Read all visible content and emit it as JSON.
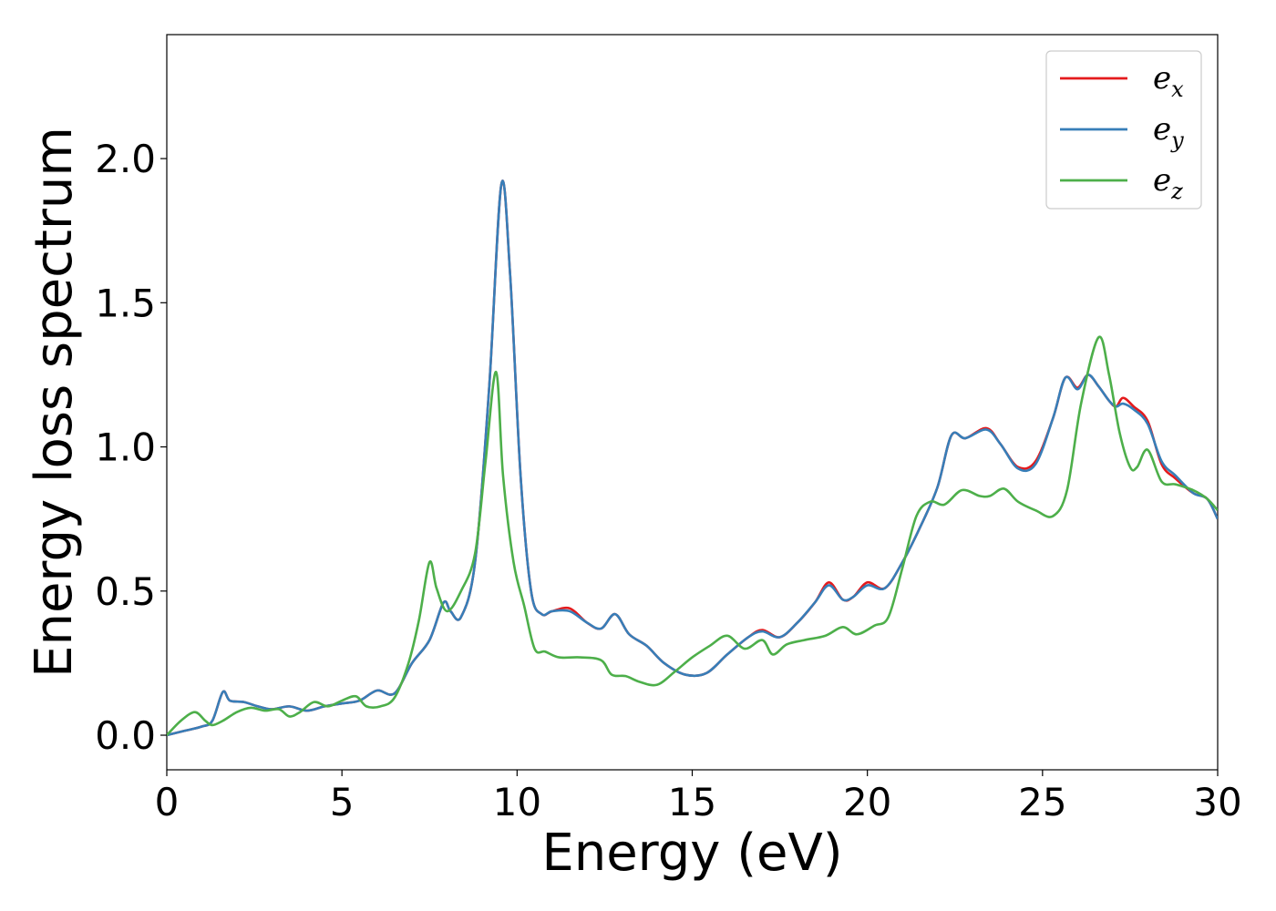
{
  "chart_data": {
    "type": "line",
    "xlabel": "Energy (eV)",
    "ylabel": "Energy loss spectrum",
    "xlim": [
      0,
      30
    ],
    "ylim": [
      -0.12,
      2.43
    ],
    "xticks": [
      0,
      5,
      10,
      15,
      20,
      25,
      30
    ],
    "xtick_labels": [
      "0",
      "5",
      "10",
      "15",
      "20",
      "25",
      "30"
    ],
    "yticks": [
      0.0,
      0.5,
      1.0,
      1.5,
      2.0
    ],
    "ytick_labels": [
      "0.0",
      "0.5",
      "1.0",
      "1.5",
      "2.0"
    ],
    "grid": false,
    "legend_position": "top-right",
    "series": [
      {
        "name": "e_x",
        "label_main": "e",
        "label_sub": "x",
        "color": "#e41a1c",
        "points": [
          [
            0,
            0
          ],
          [
            0.5,
            0.015
          ],
          [
            1.0,
            0.03
          ],
          [
            1.3,
            0.05
          ],
          [
            1.6,
            0.15
          ],
          [
            1.8,
            0.12
          ],
          [
            2.2,
            0.115
          ],
          [
            2.6,
            0.1
          ],
          [
            3.0,
            0.09
          ],
          [
            3.5,
            0.1
          ],
          [
            4.0,
            0.085
          ],
          [
            4.5,
            0.1
          ],
          [
            5.0,
            0.11
          ],
          [
            5.5,
            0.12
          ],
          [
            6.0,
            0.155
          ],
          [
            6.5,
            0.145
          ],
          [
            7.0,
            0.25
          ],
          [
            7.5,
            0.33
          ],
          [
            7.9,
            0.46
          ],
          [
            8.1,
            0.43
          ],
          [
            8.4,
            0.41
          ],
          [
            8.8,
            0.6
          ],
          [
            9.2,
            1.2
          ],
          [
            9.55,
            1.91
          ],
          [
            9.8,
            1.6
          ],
          [
            10.1,
            0.9
          ],
          [
            10.4,
            0.5
          ],
          [
            10.7,
            0.42
          ],
          [
            11.0,
            0.43
          ],
          [
            11.5,
            0.44
          ],
          [
            12.0,
            0.39
          ],
          [
            12.4,
            0.37
          ],
          [
            12.8,
            0.42
          ],
          [
            13.2,
            0.35
          ],
          [
            13.7,
            0.31
          ],
          [
            14.2,
            0.25
          ],
          [
            14.8,
            0.21
          ],
          [
            15.4,
            0.215
          ],
          [
            16.0,
            0.28
          ],
          [
            16.6,
            0.34
          ],
          [
            17.0,
            0.365
          ],
          [
            17.5,
            0.34
          ],
          [
            18.0,
            0.39
          ],
          [
            18.5,
            0.46
          ],
          [
            18.9,
            0.53
          ],
          [
            19.3,
            0.47
          ],
          [
            19.6,
            0.48
          ],
          [
            20.0,
            0.53
          ],
          [
            20.5,
            0.51
          ],
          [
            21.0,
            0.6
          ],
          [
            21.5,
            0.72
          ],
          [
            22.0,
            0.86
          ],
          [
            22.4,
            1.04
          ],
          [
            22.8,
            1.03
          ],
          [
            23.4,
            1.065
          ],
          [
            23.8,
            1.01
          ],
          [
            24.3,
            0.93
          ],
          [
            24.8,
            0.95
          ],
          [
            25.3,
            1.1
          ],
          [
            25.65,
            1.24
          ],
          [
            26.0,
            1.205
          ],
          [
            26.3,
            1.25
          ],
          [
            26.6,
            1.21
          ],
          [
            26.9,
            1.16
          ],
          [
            27.1,
            1.14
          ],
          [
            27.3,
            1.17
          ],
          [
            27.6,
            1.14
          ],
          [
            28.0,
            1.09
          ],
          [
            28.4,
            0.94
          ],
          [
            28.8,
            0.89
          ],
          [
            29.3,
            0.84
          ],
          [
            29.7,
            0.82
          ],
          [
            30.0,
            0.75
          ]
        ]
      },
      {
        "name": "e_y",
        "label_main": "e",
        "label_sub": "y",
        "color": "#377eb8",
        "points": [
          [
            0,
            0
          ],
          [
            0.5,
            0.015
          ],
          [
            1.0,
            0.03
          ],
          [
            1.3,
            0.05
          ],
          [
            1.6,
            0.15
          ],
          [
            1.8,
            0.12
          ],
          [
            2.2,
            0.115
          ],
          [
            2.6,
            0.1
          ],
          [
            3.0,
            0.09
          ],
          [
            3.5,
            0.1
          ],
          [
            4.0,
            0.085
          ],
          [
            4.5,
            0.1
          ],
          [
            5.0,
            0.11
          ],
          [
            5.5,
            0.12
          ],
          [
            6.0,
            0.155
          ],
          [
            6.5,
            0.145
          ],
          [
            7.0,
            0.25
          ],
          [
            7.5,
            0.33
          ],
          [
            7.9,
            0.46
          ],
          [
            8.1,
            0.43
          ],
          [
            8.4,
            0.41
          ],
          [
            8.8,
            0.6
          ],
          [
            9.2,
            1.2
          ],
          [
            9.55,
            1.91
          ],
          [
            9.8,
            1.6
          ],
          [
            10.1,
            0.9
          ],
          [
            10.4,
            0.5
          ],
          [
            10.7,
            0.42
          ],
          [
            11.0,
            0.43
          ],
          [
            11.5,
            0.43
          ],
          [
            12.0,
            0.39
          ],
          [
            12.4,
            0.37
          ],
          [
            12.8,
            0.42
          ],
          [
            13.2,
            0.35
          ],
          [
            13.7,
            0.31
          ],
          [
            14.2,
            0.25
          ],
          [
            14.8,
            0.21
          ],
          [
            15.4,
            0.215
          ],
          [
            16.0,
            0.28
          ],
          [
            16.6,
            0.34
          ],
          [
            17.0,
            0.36
          ],
          [
            17.5,
            0.34
          ],
          [
            18.0,
            0.39
          ],
          [
            18.5,
            0.46
          ],
          [
            18.9,
            0.52
          ],
          [
            19.3,
            0.47
          ],
          [
            19.6,
            0.48
          ],
          [
            20.0,
            0.52
          ],
          [
            20.5,
            0.51
          ],
          [
            21.0,
            0.6
          ],
          [
            21.5,
            0.72
          ],
          [
            22.0,
            0.86
          ],
          [
            22.4,
            1.04
          ],
          [
            22.8,
            1.03
          ],
          [
            23.4,
            1.06
          ],
          [
            23.8,
            1.01
          ],
          [
            24.3,
            0.925
          ],
          [
            24.8,
            0.94
          ],
          [
            25.3,
            1.1
          ],
          [
            25.65,
            1.24
          ],
          [
            26.0,
            1.2
          ],
          [
            26.3,
            1.25
          ],
          [
            26.6,
            1.21
          ],
          [
            26.9,
            1.16
          ],
          [
            27.1,
            1.14
          ],
          [
            27.3,
            1.15
          ],
          [
            27.6,
            1.13
          ],
          [
            28.0,
            1.08
          ],
          [
            28.4,
            0.95
          ],
          [
            28.8,
            0.9
          ],
          [
            29.3,
            0.84
          ],
          [
            29.7,
            0.82
          ],
          [
            30.0,
            0.75
          ]
        ]
      },
      {
        "name": "e_z",
        "label_main": "e",
        "label_sub": "z",
        "color": "#4daf4a",
        "points": [
          [
            0,
            0
          ],
          [
            0.4,
            0.05
          ],
          [
            0.8,
            0.08
          ],
          [
            1.1,
            0.05
          ],
          [
            1.3,
            0.035
          ],
          [
            1.6,
            0.05
          ],
          [
            2.0,
            0.08
          ],
          [
            2.4,
            0.095
          ],
          [
            2.8,
            0.085
          ],
          [
            3.2,
            0.09
          ],
          [
            3.5,
            0.065
          ],
          [
            3.8,
            0.08
          ],
          [
            4.2,
            0.115
          ],
          [
            4.6,
            0.1
          ],
          [
            5.0,
            0.12
          ],
          [
            5.4,
            0.135
          ],
          [
            5.7,
            0.1
          ],
          [
            6.1,
            0.1
          ],
          [
            6.5,
            0.13
          ],
          [
            6.9,
            0.25
          ],
          [
            7.2,
            0.4
          ],
          [
            7.5,
            0.6
          ],
          [
            7.7,
            0.51
          ],
          [
            8.0,
            0.43
          ],
          [
            8.4,
            0.5
          ],
          [
            8.8,
            0.63
          ],
          [
            9.1,
            0.95
          ],
          [
            9.4,
            1.26
          ],
          [
            9.6,
            0.9
          ],
          [
            9.9,
            0.6
          ],
          [
            10.2,
            0.45
          ],
          [
            10.5,
            0.3
          ],
          [
            10.8,
            0.29
          ],
          [
            11.2,
            0.27
          ],
          [
            11.8,
            0.27
          ],
          [
            12.4,
            0.26
          ],
          [
            12.7,
            0.21
          ],
          [
            13.1,
            0.205
          ],
          [
            13.5,
            0.185
          ],
          [
            14.0,
            0.175
          ],
          [
            14.5,
            0.22
          ],
          [
            15.0,
            0.27
          ],
          [
            15.5,
            0.31
          ],
          [
            16.0,
            0.345
          ],
          [
            16.5,
            0.3
          ],
          [
            17.0,
            0.33
          ],
          [
            17.3,
            0.28
          ],
          [
            17.7,
            0.315
          ],
          [
            18.2,
            0.33
          ],
          [
            18.8,
            0.345
          ],
          [
            19.3,
            0.375
          ],
          [
            19.7,
            0.35
          ],
          [
            20.2,
            0.38
          ],
          [
            20.6,
            0.41
          ],
          [
            21.0,
            0.58
          ],
          [
            21.4,
            0.76
          ],
          [
            21.8,
            0.81
          ],
          [
            22.2,
            0.8
          ],
          [
            22.7,
            0.85
          ],
          [
            23.2,
            0.83
          ],
          [
            23.5,
            0.83
          ],
          [
            23.9,
            0.855
          ],
          [
            24.3,
            0.81
          ],
          [
            24.8,
            0.78
          ],
          [
            25.3,
            0.76
          ],
          [
            25.7,
            0.85
          ],
          [
            26.1,
            1.15
          ],
          [
            26.6,
            1.38
          ],
          [
            26.9,
            1.25
          ],
          [
            27.2,
            1.05
          ],
          [
            27.5,
            0.93
          ],
          [
            27.7,
            0.93
          ],
          [
            28.0,
            0.99
          ],
          [
            28.4,
            0.88
          ],
          [
            28.8,
            0.87
          ],
          [
            29.3,
            0.85
          ],
          [
            29.7,
            0.82
          ],
          [
            30.0,
            0.78
          ]
        ]
      }
    ]
  }
}
